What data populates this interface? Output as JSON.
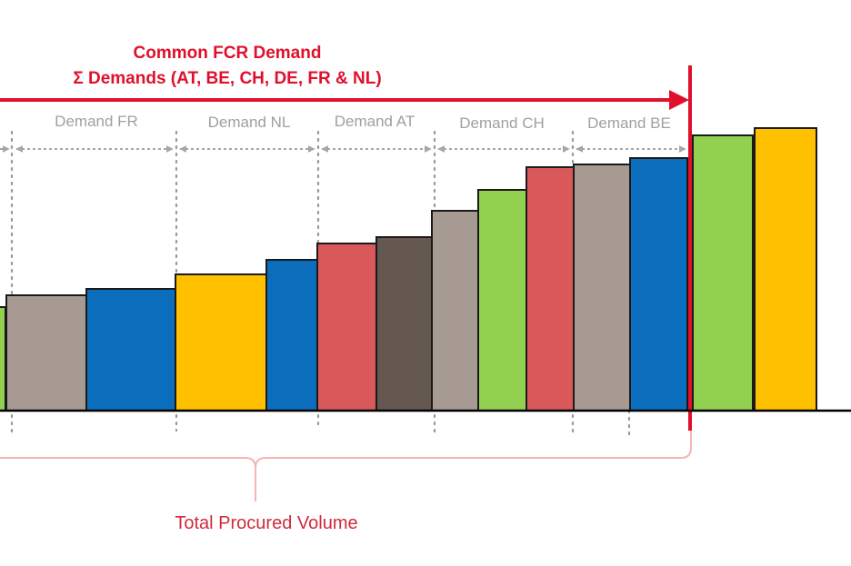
{
  "header": {
    "title_line1": "Common  FCR Demand",
    "title_line2": "Σ Demands  (AT, BE, CH, DE, FR & NL)"
  },
  "segments": [
    {
      "label": "Demand FR"
    },
    {
      "label": "Demand NL"
    },
    {
      "label": "Demand AT"
    },
    {
      "label": "Demand CH"
    },
    {
      "label": "Demand BE"
    }
  ],
  "footer": {
    "label": "Total Procured Volume"
  },
  "colors": {
    "green": "#92d050",
    "taupe": "#a69a92",
    "blue": "#0a6ebd",
    "yellow": "#ffc000",
    "red": "#d9585a",
    "brown": "#645850",
    "accent_red": "#e0102b",
    "bracket": "#f2b6b6",
    "gray_arrow": "#a6a6a6"
  },
  "bars": [
    {
      "color": "green"
    },
    {
      "color": "taupe"
    },
    {
      "color": "blue"
    },
    {
      "color": "yellow"
    },
    {
      "color": "blue"
    },
    {
      "color": "red"
    },
    {
      "color": "brown"
    },
    {
      "color": "taupe"
    },
    {
      "color": "green"
    },
    {
      "color": "red"
    },
    {
      "color": "taupe"
    },
    {
      "color": "blue"
    },
    {
      "color": "green"
    },
    {
      "color": "yellow"
    }
  ]
}
